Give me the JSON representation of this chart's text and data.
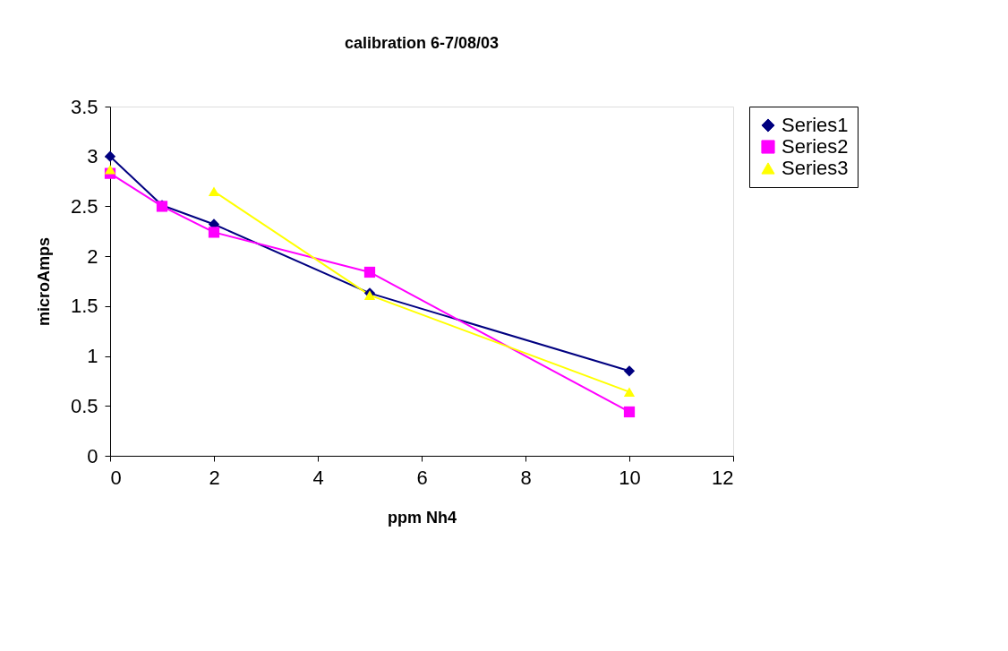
{
  "chart_data": {
    "type": "line",
    "title": "calibration 6-7/08/03",
    "xlabel": "ppm Nh4",
    "ylabel": "microAmps",
    "x": [
      0,
      1,
      2,
      5,
      10
    ],
    "series": [
      {
        "name": "Series1",
        "color": "#000080",
        "marker": "diamond",
        "values": [
          3.0,
          2.51,
          2.32,
          1.63,
          0.85
        ]
      },
      {
        "name": "Series2",
        "color": "#ff00ff",
        "marker": "square",
        "values": [
          2.83,
          2.5,
          2.24,
          1.84,
          0.44
        ]
      },
      {
        "name": "Series3",
        "color": "#ffff00",
        "marker": "triangle",
        "values": [
          2.87,
          null,
          2.65,
          1.61,
          0.64
        ]
      }
    ],
    "xlim": [
      0,
      12
    ],
    "xticks": [
      0,
      2,
      4,
      6,
      8,
      10,
      12
    ],
    "ylim": [
      0,
      3.5
    ],
    "yticks": [
      0,
      0.5,
      1,
      1.5,
      2,
      2.5,
      3,
      3.5
    ],
    "grid": false,
    "legend": "right",
    "line_style": "solid"
  }
}
